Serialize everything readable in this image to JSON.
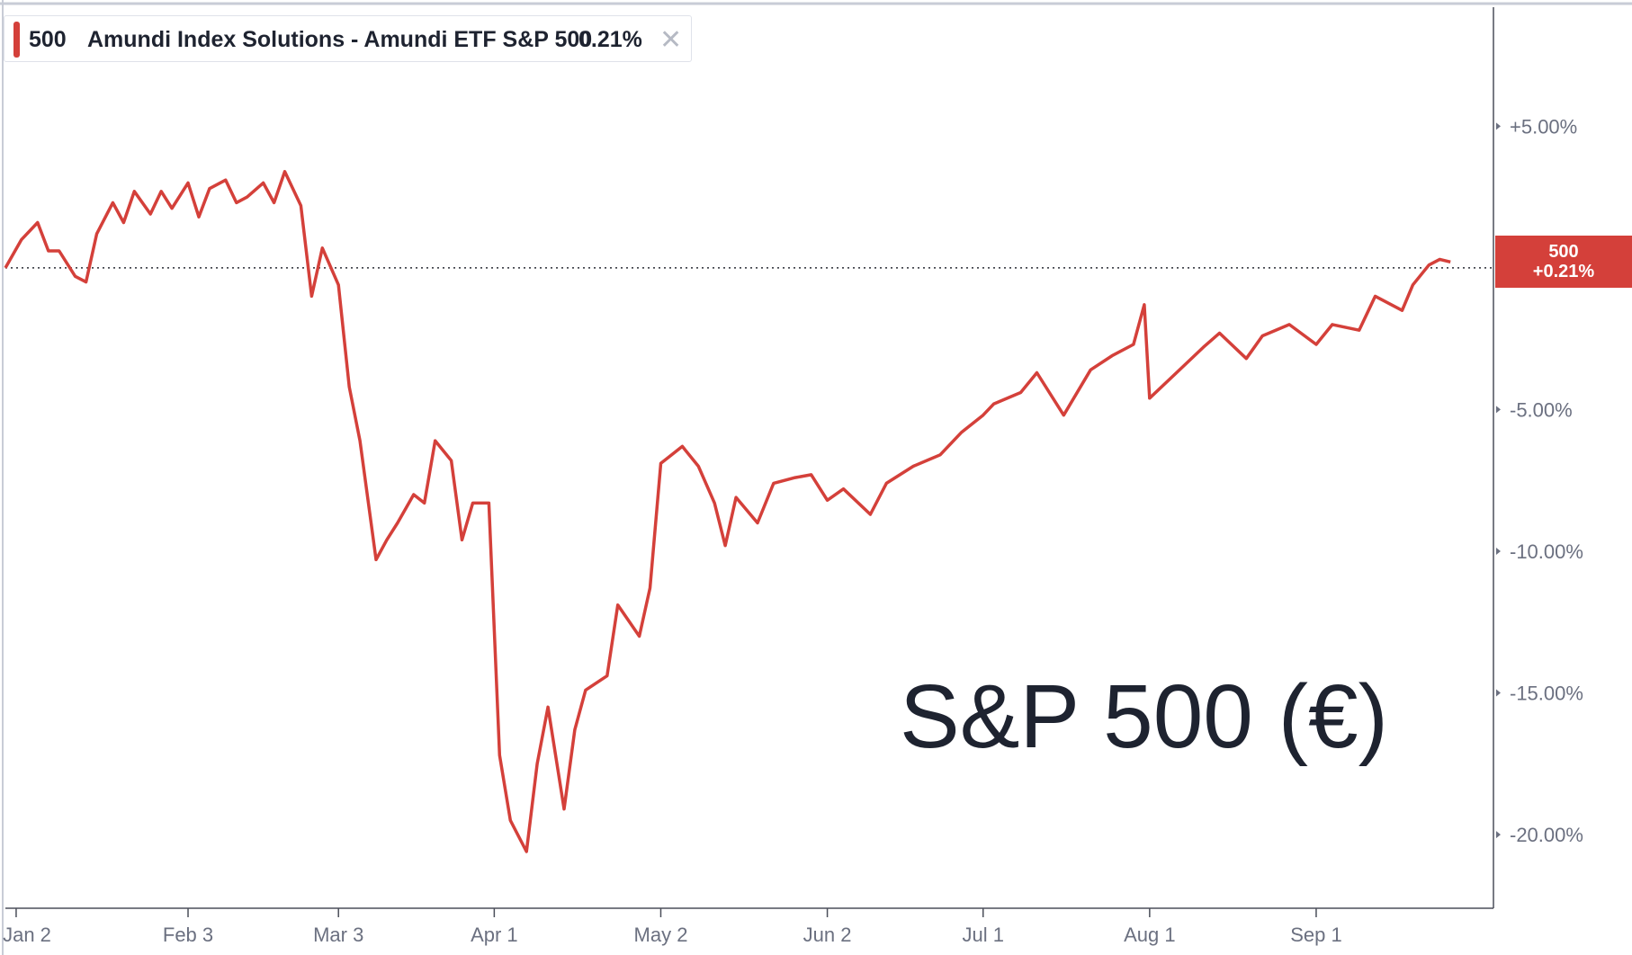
{
  "legend": {
    "symbol": "500",
    "name": "Amundi Index Solutions - Amundi ETF S&P 500",
    "change": "0.21%",
    "close_icon": "close-icon",
    "color": "#d4403a"
  },
  "overlay_title": "S&P 500 (€)",
  "badge": {
    "symbol": "500",
    "change": "+0.21%",
    "color": "#d4403a"
  },
  "chart_data": {
    "type": "line",
    "series": [
      {
        "name": "500",
        "color": "#d4403a",
        "x": [
          "2024-12-31",
          "2025-01-03",
          "2025-01-06",
          "2025-01-08",
          "2025-01-10",
          "2025-01-13",
          "2025-01-15",
          "2025-01-17",
          "2025-01-20",
          "2025-01-22",
          "2025-01-24",
          "2025-01-27",
          "2025-01-29",
          "2025-01-31",
          "2025-02-03",
          "2025-02-05",
          "2025-02-07",
          "2025-02-10",
          "2025-02-12",
          "2025-02-14",
          "2025-02-17",
          "2025-02-19",
          "2025-02-21",
          "2025-02-24",
          "2025-02-26",
          "2025-02-28",
          "2025-03-03",
          "2025-03-05",
          "2025-03-07",
          "2025-03-10",
          "2025-03-12",
          "2025-03-14",
          "2025-03-17",
          "2025-03-19",
          "2025-03-21",
          "2025-03-24",
          "2025-03-26",
          "2025-03-28",
          "2025-03-31",
          "2025-04-02",
          "2025-04-04",
          "2025-04-07",
          "2025-04-09",
          "2025-04-11",
          "2025-04-14",
          "2025-04-16",
          "2025-04-18",
          "2025-04-22",
          "2025-04-24",
          "2025-04-28",
          "2025-04-30",
          "2025-05-02",
          "2025-05-06",
          "2025-05-09",
          "2025-05-12",
          "2025-05-14",
          "2025-05-16",
          "2025-05-20",
          "2025-05-23",
          "2025-05-27",
          "2025-05-30",
          "2025-06-02",
          "2025-06-05",
          "2025-06-10",
          "2025-06-13",
          "2025-06-18",
          "2025-06-23",
          "2025-06-27",
          "2025-07-01",
          "2025-07-03",
          "2025-07-08",
          "2025-07-11",
          "2025-07-16",
          "2025-07-21",
          "2025-07-25",
          "2025-07-29",
          "2025-07-31",
          "2025-08-01",
          "2025-08-06",
          "2025-08-11",
          "2025-08-14",
          "2025-08-19",
          "2025-08-22",
          "2025-08-27",
          "2025-09-01",
          "2025-09-04",
          "2025-09-09",
          "2025-09-12",
          "2025-09-17",
          "2025-09-19",
          "2025-09-22",
          "2025-09-24",
          "2025-09-26"
        ],
        "values": [
          0.0,
          1.0,
          1.6,
          0.6,
          0.6,
          -0.3,
          -0.5,
          1.2,
          2.3,
          1.6,
          2.7,
          1.9,
          2.7,
          2.1,
          3.0,
          1.8,
          2.8,
          3.1,
          2.3,
          2.5,
          3.0,
          2.3,
          3.4,
          2.2,
          -1.0,
          0.7,
          -0.6,
          -4.2,
          -6.1,
          -10.3,
          -9.6,
          -9.0,
          -8.0,
          -8.3,
          -6.1,
          -6.8,
          -9.6,
          -8.3,
          -8.3,
          -17.2,
          -19.5,
          -20.6,
          -17.5,
          -15.5,
          -19.1,
          -16.3,
          -14.9,
          -14.4,
          -11.9,
          -13.0,
          -11.3,
          -6.9,
          -6.3,
          -7.0,
          -8.3,
          -9.8,
          -8.1,
          -9.0,
          -7.6,
          -7.4,
          -7.3,
          -8.2,
          -7.8,
          -8.7,
          -7.6,
          -7.0,
          -6.6,
          -5.8,
          -5.2,
          -4.8,
          -4.4,
          -3.7,
          -5.2,
          -3.6,
          -3.1,
          -2.7,
          -1.3,
          -4.6,
          -3.7,
          -2.8,
          -2.3,
          -3.2,
          -2.4,
          -2.0,
          -2.7,
          -2.0,
          -2.2,
          -1.0,
          -1.5,
          -0.6,
          0.1,
          0.3,
          0.21
        ]
      }
    ],
    "x_tick_labels": [
      "Jan 2",
      "Feb 3",
      "Mar 3",
      "Apr 1",
      "May 2",
      "Jun 2",
      "Jul 1",
      "Aug 1",
      "Sep 1"
    ],
    "x_tick_dates": [
      "2025-01-02",
      "2025-02-03",
      "2025-03-03",
      "2025-04-01",
      "2025-05-02",
      "2025-06-02",
      "2025-07-01",
      "2025-08-01",
      "2025-09-01"
    ],
    "y_tick_labels": [
      "+5.00%",
      "-5.00%",
      "-10.00%",
      "-15.00%",
      "-20.00%"
    ],
    "y_tick_values": [
      5,
      -5,
      -10,
      -15,
      -20
    ],
    "ylim": [
      -22.6,
      9.2
    ],
    "xlim": [
      "2024-12-31",
      "2025-10-04"
    ],
    "grid": false,
    "baseline": 0,
    "ylabel_unit": "%"
  }
}
